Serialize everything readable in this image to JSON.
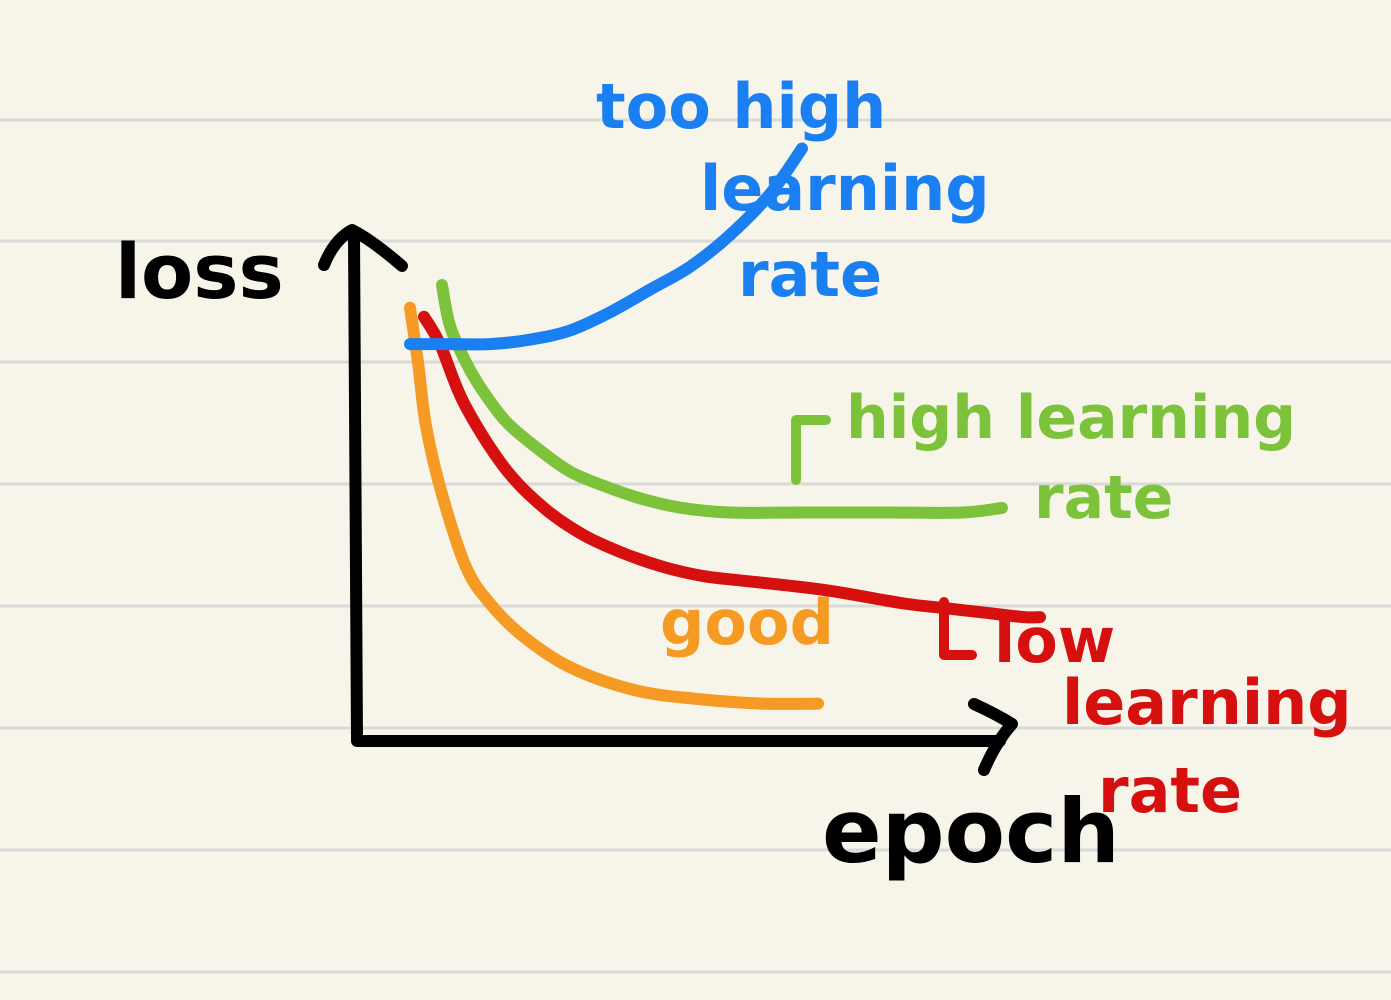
{
  "colors": {
    "paper": "#f7f5ea",
    "rule": "#d9d9d9",
    "axis": "#000000",
    "too_high": "#1a7ff0",
    "high": "#7dc23b",
    "good": "#f59a23",
    "low": "#d60f0f"
  },
  "chart_data": {
    "type": "line",
    "xlabel": "epoch",
    "ylabel": "loss",
    "grid": false,
    "axis_numbers_shown": false,
    "units": "relative (0-1), axes are unlabeled",
    "series": [
      {
        "key": "too_high",
        "name": "too high learning rate",
        "name_lines": [
          "too high",
          "learning",
          "rate"
        ],
        "x": [
          0.0,
          0.05,
          0.1,
          0.15,
          0.2,
          0.25,
          0.3,
          0.35,
          0.4,
          0.45,
          0.49
        ],
        "y": [
          0.87,
          0.87,
          0.87,
          0.88,
          0.9,
          0.94,
          0.99,
          1.04,
          1.11,
          1.2,
          1.3
        ]
      },
      {
        "key": "high",
        "name": "high learning rate",
        "name_lines": [
          "high learning",
          "rate"
        ],
        "x": [
          0.0,
          0.01,
          0.03,
          0.05,
          0.08,
          0.12,
          0.16,
          0.2,
          0.25,
          0.3,
          0.36,
          0.45,
          0.55,
          0.65,
          0.7
        ],
        "y": [
          1.0,
          0.91,
          0.83,
          0.77,
          0.7,
          0.64,
          0.59,
          0.56,
          0.53,
          0.51,
          0.5,
          0.5,
          0.5,
          0.5,
          0.51
        ]
      },
      {
        "key": "good",
        "name": "good",
        "name_lines": [
          "good"
        ],
        "x": [
          0.0,
          0.01,
          0.02,
          0.04,
          0.07,
          0.1,
          0.14,
          0.2,
          0.28,
          0.36,
          0.44,
          0.51
        ],
        "y": [
          0.95,
          0.83,
          0.69,
          0.54,
          0.38,
          0.3,
          0.23,
          0.16,
          0.11,
          0.09,
          0.08,
          0.08
        ]
      },
      {
        "key": "low",
        "name": "low learning rate",
        "name_lines": [
          "low",
          "learning",
          "rate"
        ],
        "x": [
          0.0,
          0.02,
          0.05,
          0.1,
          0.15,
          0.2,
          0.25,
          0.3,
          0.35,
          0.4,
          0.5,
          0.6,
          0.65,
          0.7,
          0.75,
          0.77
        ],
        "y": [
          0.93,
          0.87,
          0.74,
          0.6,
          0.51,
          0.45,
          0.41,
          0.38,
          0.36,
          0.35,
          0.33,
          0.3,
          0.29,
          0.28,
          0.27,
          0.27
        ]
      }
    ]
  }
}
